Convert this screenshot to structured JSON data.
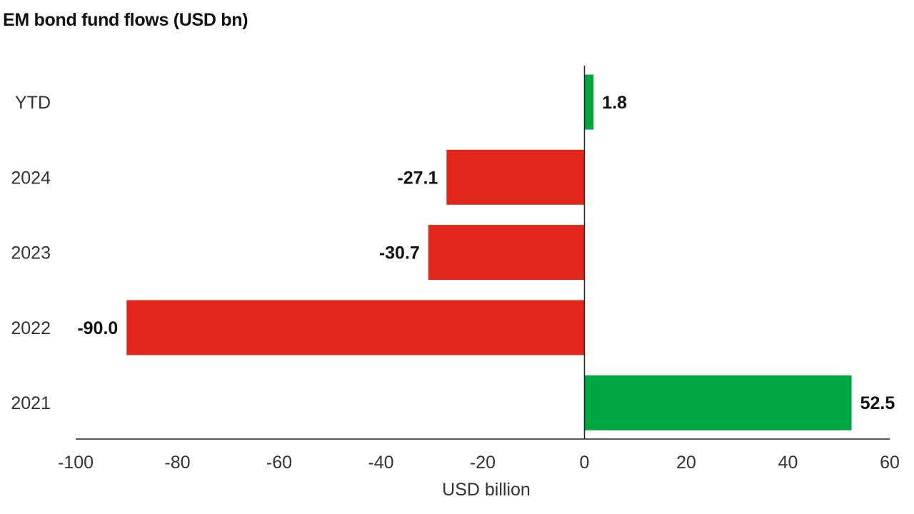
{
  "chart_data": {
    "type": "bar",
    "orientation": "horizontal",
    "title": "EM bond fund flows (USD bn)",
    "xlabel": "USD billion",
    "ylabel": "",
    "categories": [
      "YTD",
      "2024",
      "2023",
      "2022",
      "2021"
    ],
    "values": [
      1.8,
      -27.1,
      -30.7,
      -90.0,
      52.5
    ],
    "value_labels": [
      "1.8",
      "-27.1",
      "-30.7",
      "-90.0",
      "52.5"
    ],
    "xlim": [
      -100,
      60
    ],
    "xticks": [
      -100,
      -80,
      -60,
      -40,
      -20,
      0,
      20,
      40,
      60
    ],
    "grid": false,
    "legend": "none",
    "colors": {
      "positive": "#00a640",
      "negative": "#e1261c",
      "axis": "#222222"
    }
  }
}
